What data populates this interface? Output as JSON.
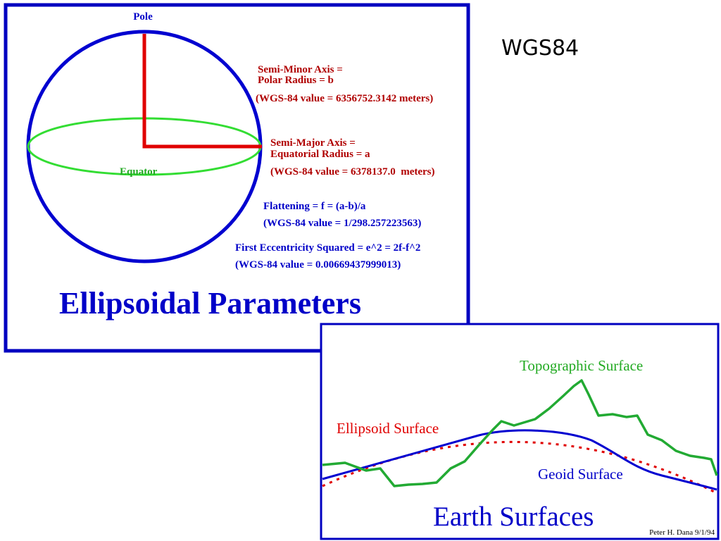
{
  "title": "WGS84",
  "ellipsoid_panel": {
    "pole": "Pole",
    "equator": "Equator",
    "semi_minor": [
      "Semi-Minor Axis =",
      "Polar Radius = b",
      "(WGS-84 value = 6356752.3142 meters)"
    ],
    "semi_major": [
      "Semi-Major Axis =",
      "Equatorial Radius = a",
      "(WGS-84 value = 6378137.0  meters)"
    ],
    "flattening": [
      "Flattening = f = (a-b)/a",
      "(WGS-84 value = 1/298.257223563)"
    ],
    "eccentricity": [
      "First Eccentricity Squared = e^2 = 2f-f^2",
      "(WGS-84 value = 0.00669437999013)"
    ],
    "heading": "Ellipsoidal Parameters"
  },
  "earth_panel": {
    "topographic": "Topographic Surface",
    "ellipsoid": "Ellipsoid Surface",
    "geoid": "Geoid Surface",
    "heading": "Earth Surfaces",
    "credit": "Peter H. Dana 9/1/94"
  }
}
